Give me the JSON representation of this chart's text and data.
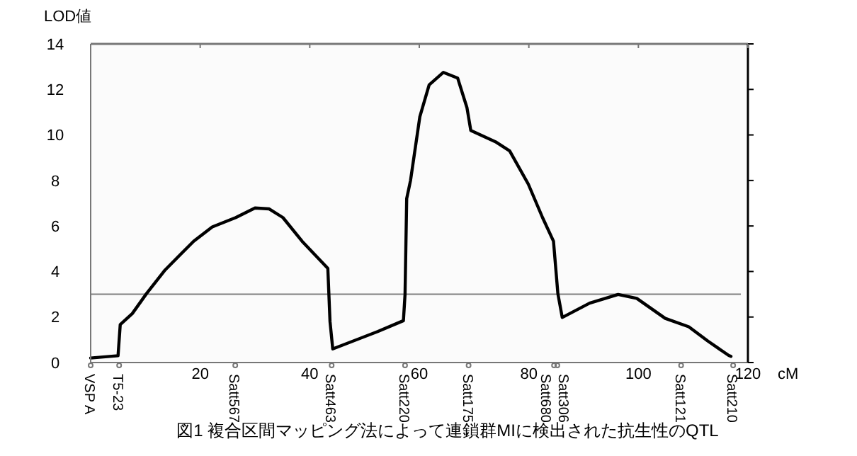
{
  "chart_data": {
    "type": "line",
    "ylabel": "LOD値",
    "xlabel": "cM",
    "grid": false,
    "marker": "none",
    "line_style": "solid",
    "xlim": [
      0,
      120
    ],
    "ylim": [
      0,
      14
    ],
    "xticks": [
      20,
      40,
      60,
      80,
      100,
      120
    ],
    "yticks": [
      0,
      2,
      4,
      6,
      8,
      10,
      12,
      14
    ],
    "series": [
      {
        "color": "#000000",
        "x": [
          0,
          5.0,
          5.4,
          7.6,
          10.2,
          13.6,
          18.8,
          22.2,
          26.5,
          30.0,
          32.6,
          35.1,
          38.6,
          43.3,
          43.7,
          44.2,
          52.4,
          57.1,
          57.4,
          57.7,
          58.4,
          60.1,
          61.8,
          64.4,
          67.0,
          68.7,
          69.4,
          73.9,
          76.5,
          79.9,
          82.5,
          84.5,
          85.3,
          86.1,
          91.1,
          96.3,
          99.7,
          104.9,
          109.2,
          112.7,
          116.5,
          116.9
        ],
        "values": [
          0.2,
          0.3,
          1.67,
          2.15,
          3.03,
          4.07,
          5.33,
          5.96,
          6.37,
          6.79,
          6.75,
          6.37,
          5.33,
          4.14,
          1.8,
          0.6,
          1.36,
          1.84,
          3.0,
          7.2,
          8.0,
          10.8,
          12.2,
          12.75,
          12.5,
          11.2,
          10.2,
          9.7,
          9.3,
          7.84,
          6.37,
          5.33,
          3.03,
          1.98,
          2.61,
          2.99,
          2.82,
          1.94,
          1.57,
          0.94,
          0.31,
          0.27
        ]
      }
    ],
    "ref_lines": [
      {
        "axis": "y",
        "value": 3,
        "color": "#808080"
      }
    ],
    "annotations": [
      {
        "text": "VSP A",
        "x": 0,
        "y": 0
      },
      {
        "text": "T5-23",
        "x": 5.2,
        "y": 0
      },
      {
        "text": "Satt567",
        "x": 26.4,
        "y": 0
      },
      {
        "text": "Satt463",
        "x": 44,
        "y": 0
      },
      {
        "text": "Satt220",
        "x": 57.4,
        "y": 0
      },
      {
        "text": "Satt175",
        "x": 69,
        "y": 0
      },
      {
        "text": "Satt680",
        "x": 84.6,
        "y": 0
      },
      {
        "text": "Satt306",
        "x": 85.2,
        "y": 0
      },
      {
        "text": "Satt121",
        "x": 107.8,
        "y": 0
      },
      {
        "text": "Satt210",
        "x": 117.3,
        "y": 0
      },
      "図1 複合区間マッピング法によって連鎖群MIに検出された抗生性のQTL"
    ]
  }
}
